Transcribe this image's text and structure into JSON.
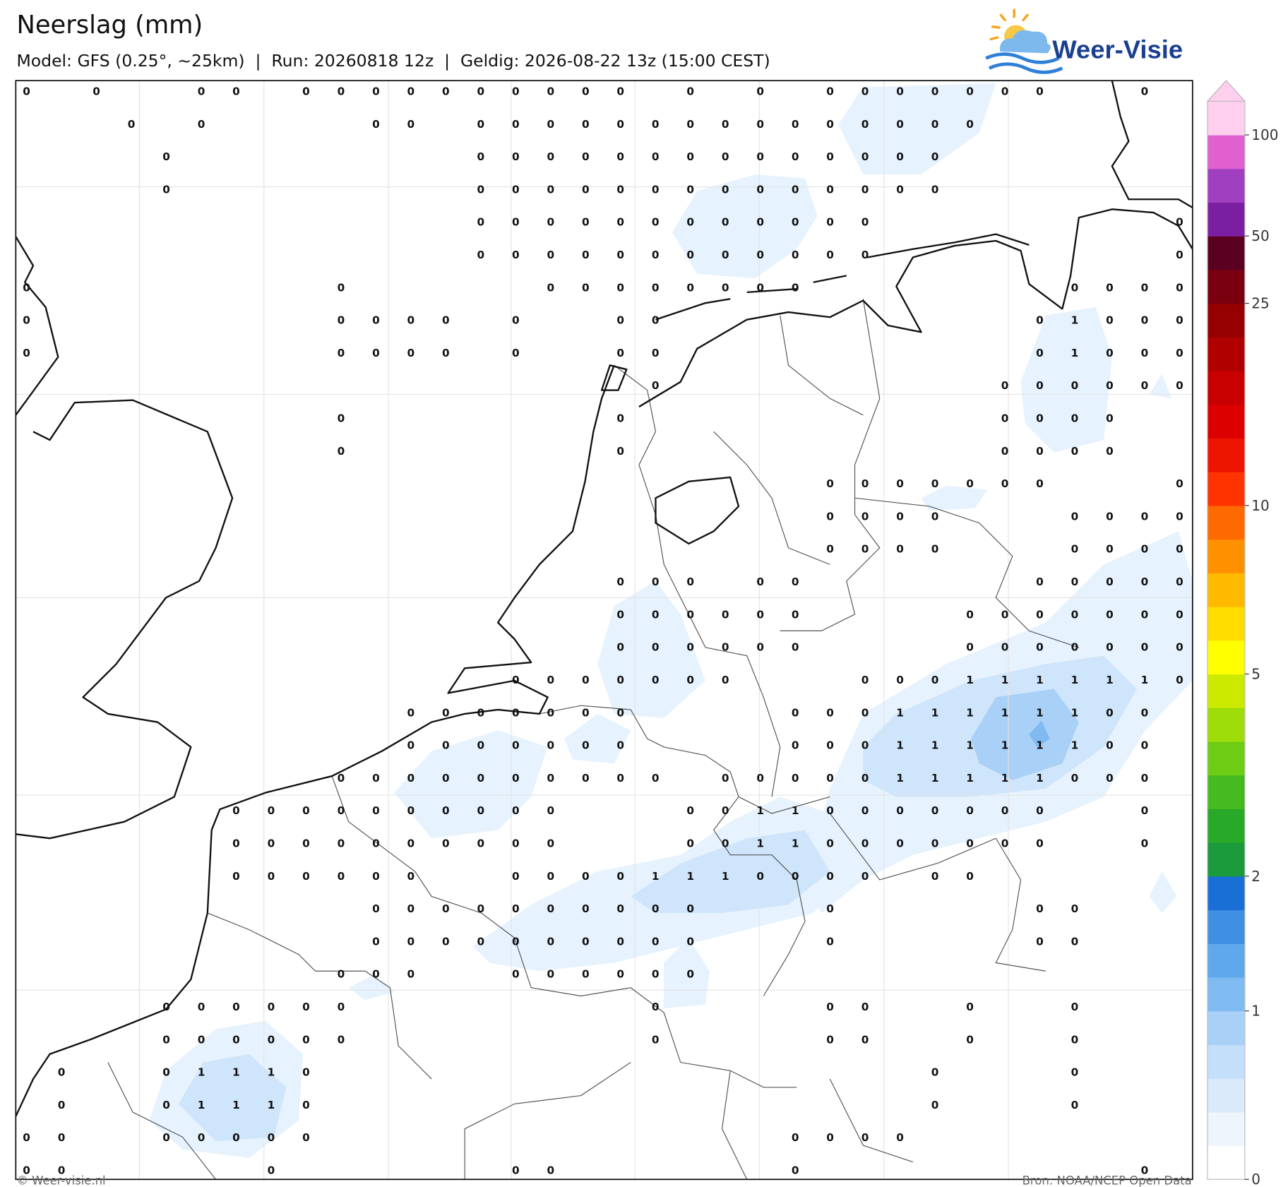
{
  "header": {
    "title": "Neerslag (mm)",
    "subtitle": "Model: GFS (0.25°, ~25km)  |  Run: 20260818 12z  |  Geldig: 2026-08-22 13z (15:00 CEST)",
    "logo": "Weer-Visie"
  },
  "grid": {
    "rows": [
      [
        0,
        null,
        0,
        null,
        null,
        0,
        0,
        null,
        0,
        0,
        0,
        0,
        0,
        0,
        0,
        0,
        0,
        0,
        null,
        0,
        null,
        0,
        null,
        0,
        0,
        0,
        0,
        0,
        0,
        0,
        null,
        null,
        0,
        null
      ],
      [
        null,
        null,
        null,
        0,
        null,
        0,
        null,
        null,
        null,
        null,
        0,
        0,
        null,
        0,
        0,
        0,
        0,
        0,
        0,
        0,
        0,
        0,
        0,
        0,
        0,
        0,
        0,
        0,
        null,
        null,
        null,
        null,
        null,
        null
      ],
      [
        null,
        null,
        null,
        null,
        0,
        null,
        null,
        null,
        null,
        null,
        null,
        null,
        null,
        0,
        0,
        0,
        0,
        0,
        0,
        0,
        0,
        0,
        0,
        0,
        0,
        0,
        0,
        null,
        null,
        null,
        null,
        null,
        null,
        null
      ],
      [
        null,
        null,
        null,
        null,
        0,
        null,
        null,
        null,
        null,
        null,
        null,
        null,
        null,
        0,
        0,
        0,
        0,
        0,
        0,
        0,
        0,
        0,
        0,
        0,
        0,
        0,
        0,
        null,
        null,
        null,
        null,
        null,
        null,
        null
      ],
      [
        null,
        null,
        null,
        null,
        null,
        null,
        null,
        null,
        null,
        null,
        null,
        null,
        null,
        0,
        0,
        0,
        0,
        0,
        0,
        0,
        0,
        0,
        0,
        0,
        0,
        null,
        null,
        null,
        null,
        null,
        null,
        null,
        null,
        0
      ],
      [
        null,
        null,
        null,
        null,
        null,
        null,
        null,
        null,
        null,
        null,
        null,
        null,
        null,
        0,
        0,
        0,
        0,
        0,
        0,
        0,
        0,
        0,
        0,
        0,
        0,
        null,
        null,
        null,
        null,
        null,
        null,
        null,
        null,
        0
      ],
      [
        0,
        null,
        null,
        null,
        null,
        null,
        null,
        null,
        null,
        0,
        null,
        null,
        null,
        null,
        null,
        0,
        0,
        0,
        0,
        0,
        0,
        0,
        0,
        null,
        null,
        null,
        null,
        null,
        null,
        null,
        0,
        0,
        0,
        0
      ],
      [
        0,
        null,
        null,
        null,
        null,
        null,
        null,
        null,
        null,
        0,
        0,
        0,
        0,
        null,
        0,
        null,
        null,
        0,
        0,
        null,
        null,
        null,
        null,
        null,
        null,
        null,
        null,
        null,
        null,
        0,
        1,
        0,
        0,
        0
      ],
      [
        0,
        null,
        null,
        null,
        null,
        null,
        null,
        null,
        null,
        0,
        0,
        0,
        0,
        null,
        0,
        null,
        null,
        0,
        0,
        null,
        null,
        null,
        null,
        null,
        null,
        null,
        null,
        null,
        null,
        0,
        1,
        0,
        0,
        0
      ],
      [
        null,
        null,
        null,
        null,
        null,
        null,
        null,
        null,
        null,
        null,
        null,
        null,
        null,
        null,
        null,
        null,
        null,
        null,
        0,
        null,
        null,
        null,
        null,
        null,
        null,
        null,
        null,
        null,
        0,
        0,
        0,
        0,
        0,
        0
      ],
      [
        null,
        null,
        null,
        null,
        null,
        null,
        null,
        null,
        null,
        0,
        null,
        null,
        null,
        null,
        null,
        null,
        null,
        0,
        null,
        null,
        null,
        null,
        null,
        null,
        null,
        null,
        null,
        null,
        0,
        0,
        0,
        0,
        null,
        null
      ],
      [
        null,
        null,
        null,
        null,
        null,
        null,
        null,
        null,
        null,
        0,
        null,
        null,
        null,
        null,
        null,
        null,
        null,
        0,
        null,
        null,
        null,
        null,
        null,
        null,
        null,
        null,
        null,
        null,
        0,
        0,
        0,
        0,
        null,
        null
      ],
      [
        null,
        null,
        null,
        null,
        null,
        null,
        null,
        null,
        null,
        null,
        null,
        null,
        null,
        null,
        null,
        null,
        null,
        null,
        null,
        null,
        null,
        null,
        null,
        0,
        0,
        0,
        0,
        0,
        0,
        0,
        null,
        null,
        null,
        0
      ],
      [
        null,
        null,
        null,
        null,
        null,
        null,
        null,
        null,
        null,
        null,
        null,
        null,
        null,
        null,
        null,
        null,
        null,
        null,
        null,
        null,
        null,
        null,
        null,
        0,
        0,
        0,
        0,
        null,
        null,
        null,
        0,
        0,
        0,
        0
      ],
      [
        null,
        null,
        null,
        null,
        null,
        null,
        null,
        null,
        null,
        null,
        null,
        null,
        null,
        null,
        null,
        null,
        null,
        null,
        null,
        null,
        null,
        null,
        null,
        0,
        0,
        0,
        0,
        null,
        null,
        null,
        0,
        0,
        0,
        0
      ],
      [
        null,
        null,
        null,
        null,
        null,
        null,
        null,
        null,
        null,
        null,
        null,
        null,
        null,
        null,
        null,
        null,
        null,
        0,
        0,
        0,
        null,
        0,
        0,
        null,
        null,
        null,
        null,
        null,
        null,
        0,
        0,
        0,
        0,
        0
      ],
      [
        null,
        null,
        null,
        null,
        null,
        null,
        null,
        null,
        null,
        null,
        null,
        null,
        null,
        null,
        null,
        null,
        null,
        0,
        0,
        0,
        0,
        0,
        0,
        null,
        null,
        null,
        null,
        0,
        0,
        0,
        0,
        0,
        0,
        0
      ],
      [
        null,
        null,
        null,
        null,
        null,
        null,
        null,
        null,
        null,
        null,
        null,
        null,
        null,
        null,
        null,
        null,
        null,
        0,
        0,
        0,
        0,
        0,
        0,
        null,
        null,
        null,
        null,
        0,
        0,
        0,
        0,
        0,
        0,
        0
      ],
      [
        null,
        null,
        null,
        null,
        null,
        null,
        null,
        null,
        null,
        null,
        null,
        null,
        null,
        null,
        0,
        0,
        0,
        0,
        0,
        0,
        0,
        null,
        null,
        null,
        0,
        0,
        0,
        1,
        1,
        1,
        1,
        1,
        1,
        0
      ],
      [
        null,
        null,
        null,
        null,
        null,
        null,
        null,
        null,
        null,
        null,
        null,
        0,
        0,
        0,
        0,
        0,
        0,
        0,
        null,
        null,
        null,
        null,
        0,
        0,
        0,
        1,
        1,
        1,
        1,
        1,
        1,
        0,
        0,
        null
      ],
      [
        null,
        null,
        null,
        null,
        null,
        null,
        null,
        null,
        null,
        null,
        null,
        0,
        0,
        0,
        0,
        0,
        0,
        0,
        null,
        null,
        null,
        null,
        0,
        0,
        0,
        1,
        1,
        1,
        1,
        1,
        1,
        0,
        0,
        null
      ],
      [
        null,
        null,
        null,
        null,
        null,
        null,
        null,
        null,
        null,
        0,
        0,
        0,
        0,
        0,
        0,
        0,
        0,
        0,
        0,
        null,
        0,
        0,
        0,
        0,
        0,
        1,
        1,
        1,
        1,
        1,
        0,
        0,
        0,
        null
      ],
      [
        null,
        null,
        null,
        null,
        null,
        null,
        0,
        0,
        0,
        0,
        0,
        0,
        0,
        0,
        0,
        0,
        null,
        null,
        null,
        0,
        0,
        1,
        1,
        0,
        0,
        0,
        0,
        0,
        0,
        0,
        null,
        null,
        0,
        null
      ],
      [
        null,
        null,
        null,
        null,
        null,
        null,
        0,
        0,
        0,
        0,
        0,
        0,
        0,
        0,
        0,
        0,
        null,
        null,
        null,
        0,
        0,
        1,
        1,
        0,
        0,
        0,
        0,
        0,
        0,
        0,
        null,
        null,
        0,
        null
      ],
      [
        null,
        null,
        null,
        null,
        null,
        null,
        0,
        0,
        0,
        0,
        0,
        0,
        null,
        null,
        0,
        0,
        0,
        0,
        1,
        1,
        1,
        0,
        0,
        0,
        0,
        null,
        0,
        0,
        null,
        null,
        null,
        null,
        null,
        null
      ],
      [
        null,
        null,
        null,
        null,
        null,
        null,
        null,
        null,
        null,
        null,
        0,
        0,
        0,
        0,
        0,
        0,
        0,
        0,
        0,
        0,
        null,
        null,
        null,
        0,
        null,
        null,
        null,
        null,
        null,
        0,
        0,
        null,
        null,
        null
      ],
      [
        null,
        null,
        null,
        null,
        null,
        null,
        null,
        null,
        null,
        null,
        0,
        0,
        0,
        0,
        0,
        0,
        0,
        0,
        0,
        0,
        null,
        null,
        null,
        0,
        null,
        null,
        null,
        null,
        null,
        0,
        0,
        null,
        null,
        null
      ],
      [
        null,
        null,
        null,
        null,
        null,
        null,
        null,
        null,
        null,
        0,
        0,
        0,
        null,
        null,
        0,
        0,
        0,
        0,
        0,
        0,
        null,
        null,
        null,
        null,
        null,
        null,
        null,
        null,
        null,
        null,
        null,
        null,
        null,
        null
      ],
      [
        null,
        null,
        null,
        null,
        0,
        0,
        0,
        0,
        0,
        0,
        null,
        null,
        null,
        null,
        null,
        null,
        null,
        null,
        0,
        null,
        null,
        null,
        null,
        0,
        0,
        null,
        null,
        0,
        null,
        null,
        0,
        null,
        null,
        null
      ],
      [
        null,
        null,
        null,
        null,
        0,
        0,
        0,
        0,
        0,
        0,
        null,
        null,
        null,
        null,
        null,
        null,
        null,
        null,
        0,
        null,
        null,
        null,
        null,
        0,
        0,
        null,
        null,
        0,
        null,
        null,
        0,
        null,
        null,
        null
      ],
      [
        null,
        0,
        null,
        null,
        0,
        1,
        1,
        1,
        0,
        null,
        null,
        null,
        null,
        null,
        null,
        null,
        null,
        null,
        null,
        null,
        null,
        null,
        null,
        null,
        null,
        null,
        0,
        null,
        null,
        null,
        0,
        null,
        null,
        null
      ],
      [
        null,
        0,
        null,
        null,
        0,
        1,
        1,
        1,
        0,
        null,
        null,
        null,
        null,
        null,
        null,
        null,
        null,
        null,
        null,
        null,
        null,
        null,
        null,
        null,
        null,
        null,
        0,
        null,
        null,
        null,
        0,
        null,
        null,
        null
      ],
      [
        0,
        0,
        null,
        null,
        0,
        0,
        0,
        0,
        0,
        null,
        null,
        null,
        null,
        null,
        null,
        null,
        null,
        null,
        null,
        null,
        null,
        null,
        0,
        0,
        0,
        0,
        null,
        null,
        null,
        null,
        null,
        null,
        null,
        null
      ],
      [
        0,
        0,
        null,
        null,
        null,
        null,
        null,
        0,
        null,
        null,
        null,
        null,
        null,
        null,
        0,
        0,
        null,
        null,
        null,
        null,
        null,
        null,
        0,
        null,
        null,
        null,
        null,
        null,
        null,
        null,
        null,
        null,
        0,
        null
      ]
    ]
  },
  "colorbar": {
    "ticks": [
      0,
      1,
      2,
      5,
      10,
      25,
      50,
      100
    ],
    "colors": [
      "#ffffff",
      "#eef5fd",
      "#daeafb",
      "#c4dff9",
      "#a9d0f6",
      "#7fbaf0",
      "#5fa8ec",
      "#3f8fe3",
      "#1a6fd6",
      "#1a9a3a",
      "#28a928",
      "#45bb1f",
      "#6dcc14",
      "#9edc0a",
      "#ccea00",
      "#ffff00",
      "#ffdd00",
      "#ffba00",
      "#ff9000",
      "#ff6a00",
      "#ff3300",
      "#ee1500",
      "#dd0000",
      "#c80000",
      "#b00000",
      "#960000",
      "#7a0010",
      "#5a0020",
      "#7b1fa2",
      "#a040c0",
      "#e060d0",
      "#ffcfee"
    ]
  },
  "footer": {
    "left": "© Weer-visie.nl",
    "right": "Bron: NOAA/NCEP Open Data"
  }
}
